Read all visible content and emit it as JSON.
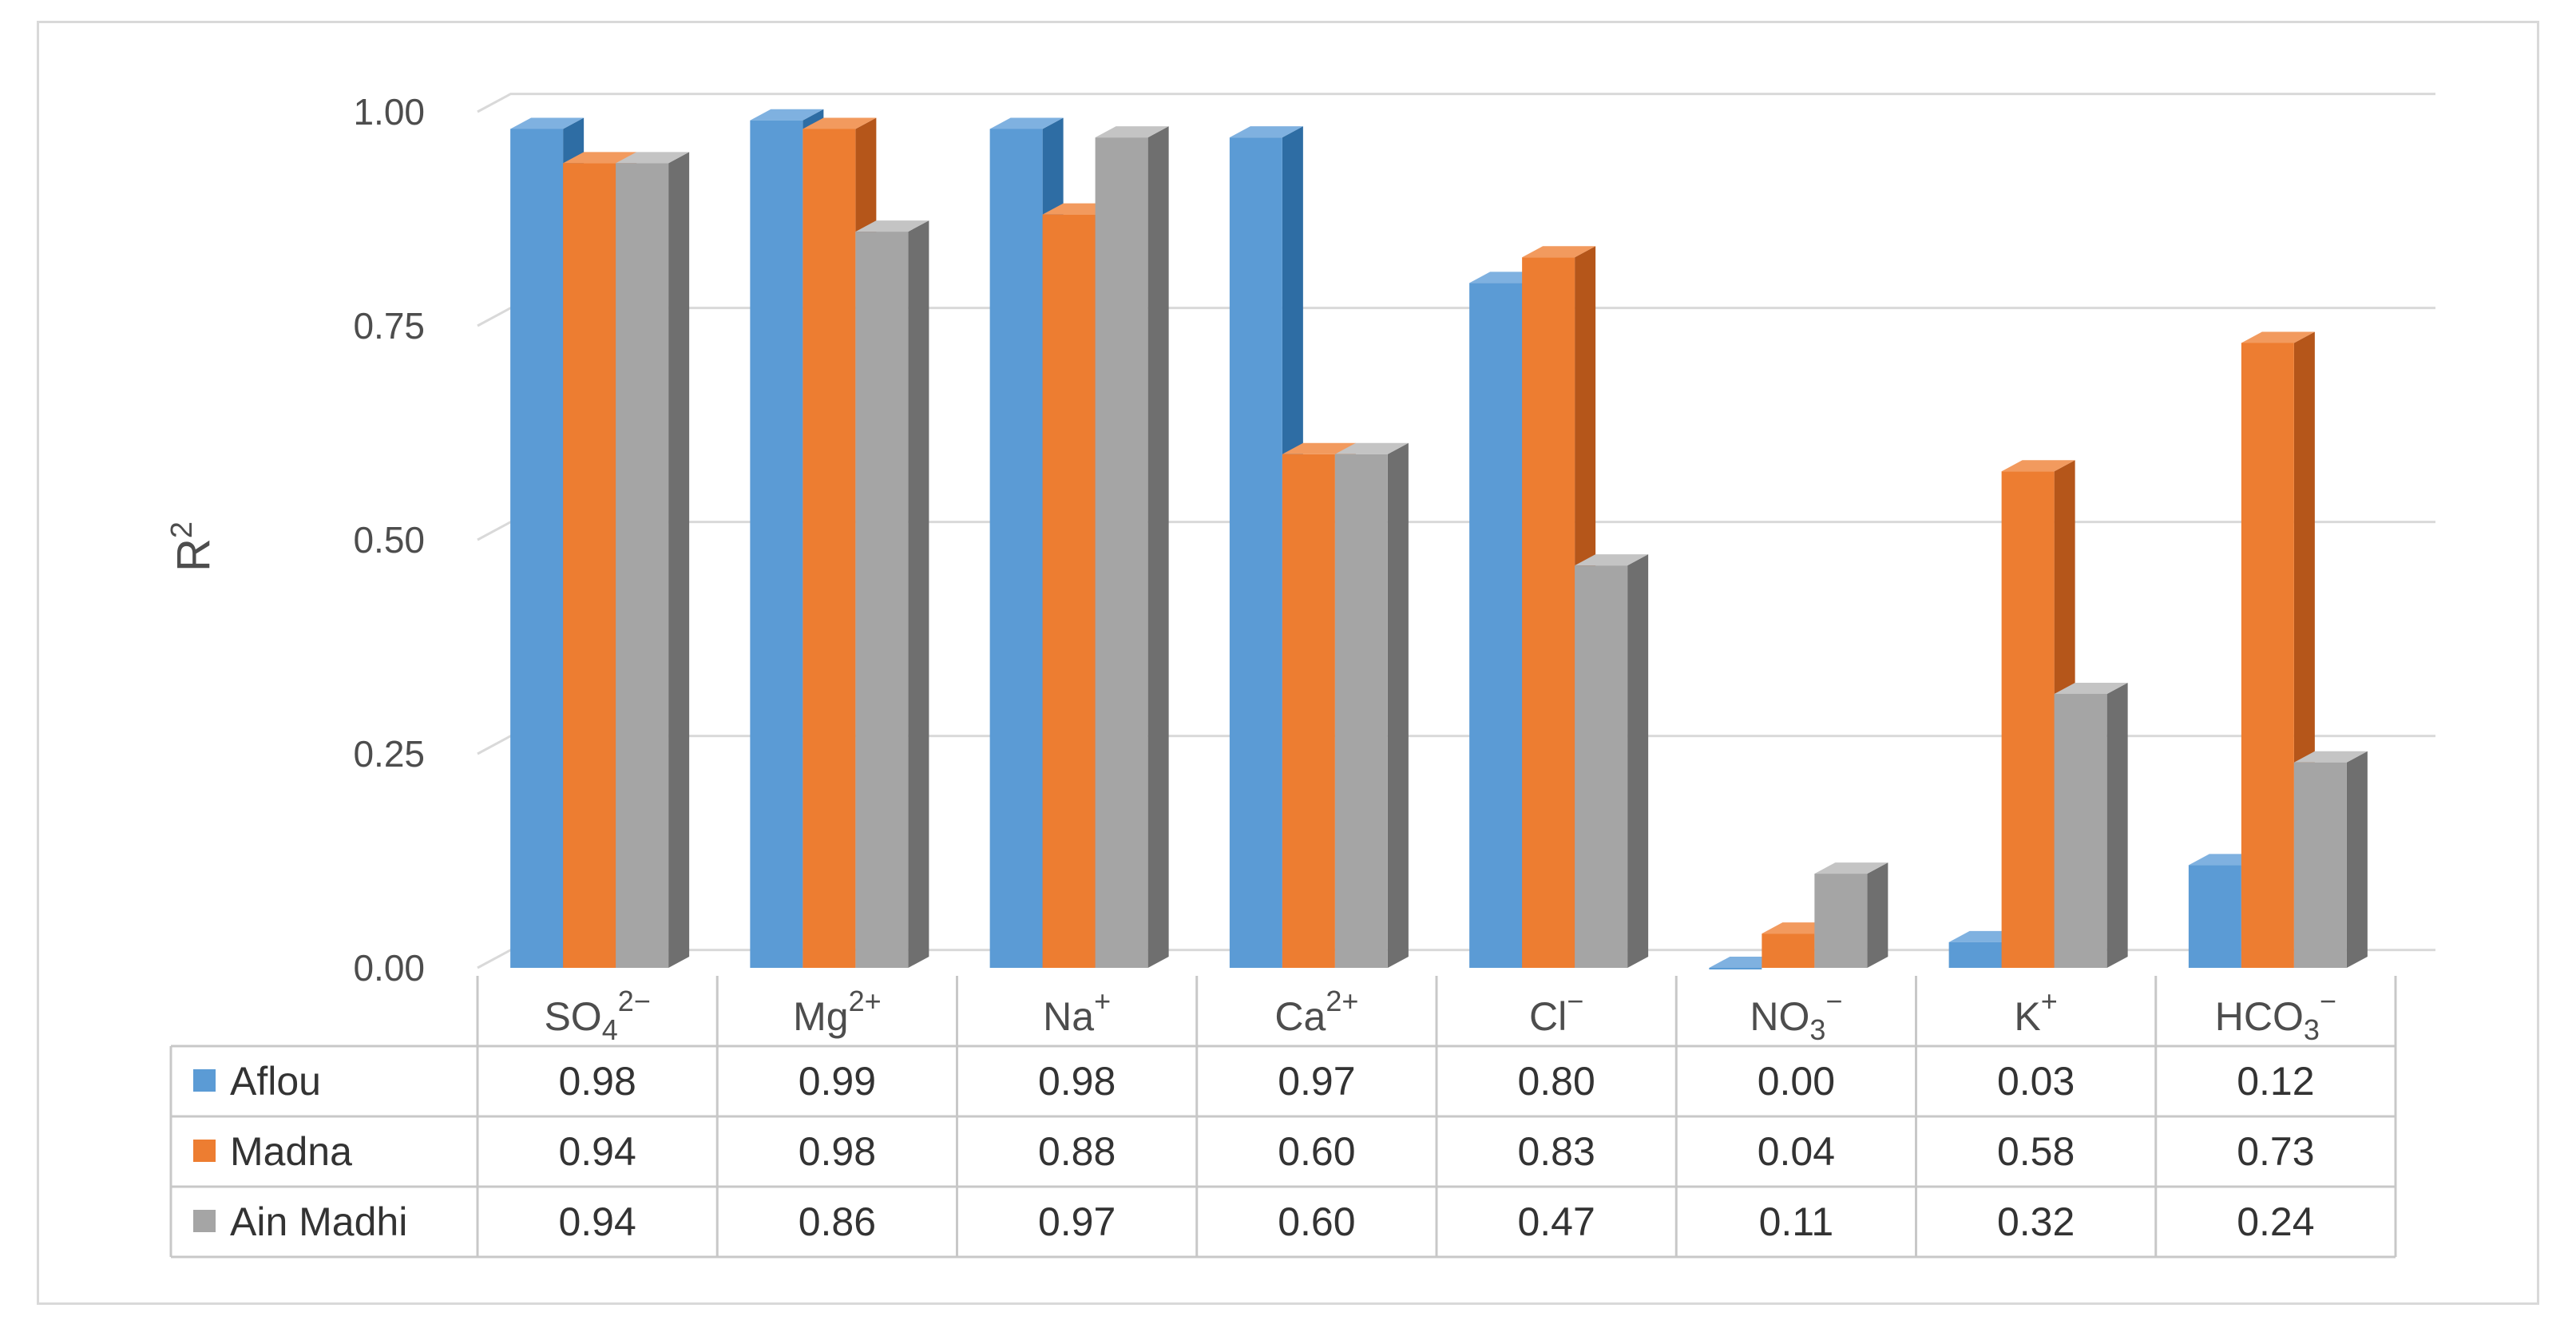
{
  "chart_data": {
    "type": "bar",
    "ylabel": {
      "base": "R",
      "sup": "2"
    },
    "ylim": [
      0,
      1
    ],
    "yticks": [
      "0.00",
      "0.25",
      "0.50",
      "0.75",
      "1.00"
    ],
    "grid": true,
    "legend": "data-table",
    "categories": [
      {
        "base": "SO",
        "sub": "4",
        "sup": "2−"
      },
      {
        "base": "Mg",
        "sub": "",
        "sup": "2+"
      },
      {
        "base": "Na",
        "sub": "",
        "sup": "+"
      },
      {
        "base": "Ca",
        "sub": "",
        "sup": "2+"
      },
      {
        "base": "Cl",
        "sub": "",
        "sup": "−"
      },
      {
        "base": "NO",
        "sub": "3",
        "sup": "−"
      },
      {
        "base": "K",
        "sub": "",
        "sup": "+"
      },
      {
        "base": "HCO",
        "sub": "3",
        "sup": "−"
      }
    ],
    "series": [
      {
        "name": "Aflou",
        "color": "#5b9bd5",
        "side": "#2e6da4",
        "top": "#7fb1e0",
        "values": [
          0.98,
          0.99,
          0.98,
          0.97,
          0.8,
          0.0,
          0.03,
          0.12
        ],
        "labels": [
          "0.98",
          "0.99",
          "0.98",
          "0.97",
          "0.80",
          "0.00",
          "0.03",
          "0.12"
        ]
      },
      {
        "name": "Madna",
        "color": "#ed7d31",
        "side": "#b5561a",
        "top": "#f29a5e",
        "values": [
          0.94,
          0.98,
          0.88,
          0.6,
          0.83,
          0.04,
          0.58,
          0.73
        ],
        "labels": [
          "0.94",
          "0.98",
          "0.88",
          "0.60",
          "0.83",
          "0.04",
          "0.58",
          "0.73"
        ]
      },
      {
        "name": "Ain Madhi",
        "color": "#a5a5a5",
        "side": "#6f6f6f",
        "top": "#c4c4c4",
        "values": [
          0.94,
          0.86,
          0.97,
          0.6,
          0.47,
          0.11,
          0.32,
          0.24
        ],
        "labels": [
          "0.94",
          "0.86",
          "0.97",
          "0.60",
          "0.47",
          "0.11",
          "0.32",
          "0.24"
        ]
      }
    ]
  }
}
